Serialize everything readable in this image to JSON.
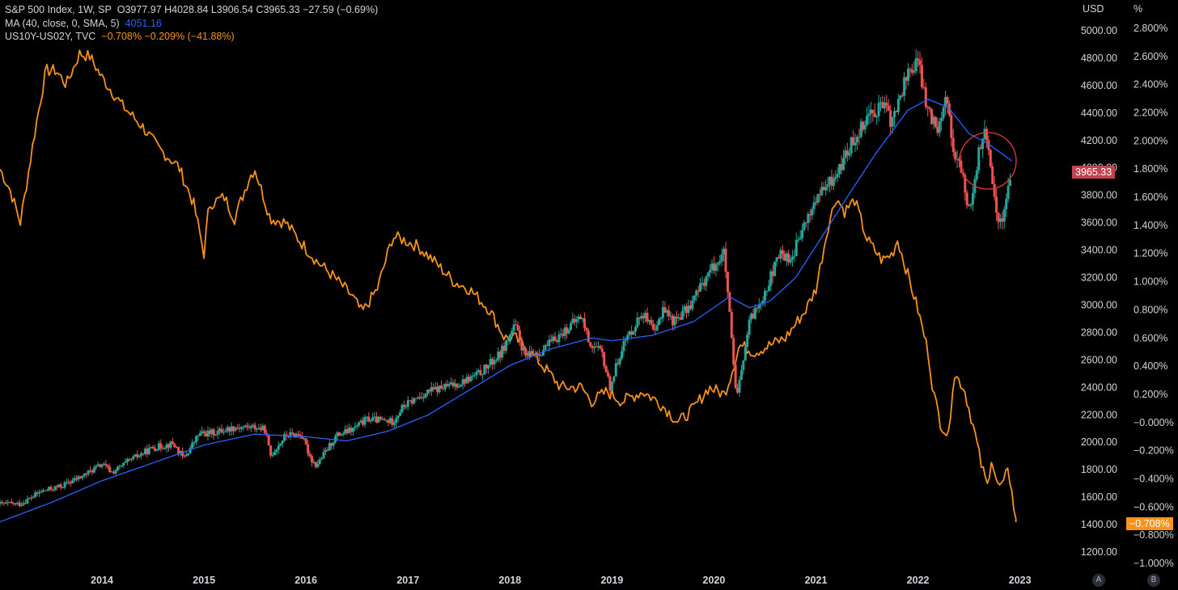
{
  "legend": {
    "row1": {
      "label": "S&P 500 Index, 1W, SP",
      "ohlc": "O3977.97 H4028.84 L3906.54 C3965.33 −27.59 (−0.69%)"
    },
    "row2": {
      "label": "MA (40, close, 0, SMA, 5)",
      "value": "4051.16"
    },
    "row3": {
      "label": "US10Y-US02Y, TVC",
      "value": "−0.708%  −0.209% (−41.88%)"
    }
  },
  "axes": {
    "usd_title": "USD",
    "pct_title": "%",
    "usd_badge": "3965.33",
    "pct_badge": "−0.708%",
    "btn_a": "A",
    "btn_b": "B"
  },
  "colors": {
    "up": "#26a69a",
    "down": "#ef5350",
    "ma": "#2962ff",
    "spread": "#f7931a",
    "price_badge": "#c2434e",
    "pct_badge": "#f7931a",
    "circle": "#e53935"
  },
  "chart_data": {
    "type": "line",
    "title": "S&P 500 Index, 1W, SP",
    "x_ticks": [
      "2014",
      "2015",
      "2016",
      "2017",
      "2018",
      "2019",
      "2020",
      "2021",
      "2022",
      "2023"
    ],
    "usd_ticks": [
      "5000.00",
      "4800.00",
      "4600.00",
      "4400.00",
      "4200.00",
      "4000.00",
      "3800.00",
      "3600.00",
      "3400.00",
      "3200.00",
      "3000.00",
      "2800.00",
      "2600.00",
      "2400.00",
      "2200.00",
      "2000.00",
      "1800.00",
      "1600.00",
      "1400.00",
      "1200.00"
    ],
    "pct_ticks": [
      "2.800%",
      "2.600%",
      "2.400%",
      "2.200%",
      "2.000%",
      "1.800%",
      "1.600%",
      "1.400%",
      "1.200%",
      "1.000%",
      "0.800%",
      "0.600%",
      "0.400%",
      "0.200%",
      "−0.000%",
      "−0.200%",
      "−0.400%",
      "−0.600%",
      "−0.800%",
      "−1.000%"
    ],
    "usd_range": [
      1200,
      5000
    ],
    "pct_range": [
      -1.0,
      2.8
    ],
    "series": [
      {
        "name": "S&P 500 Index",
        "style": "candlestick",
        "points": [
          [
            2013.2,
            1550
          ],
          [
            2013.4,
            1640
          ],
          [
            2013.6,
            1680
          ],
          [
            2013.8,
            1750
          ],
          [
            2014.0,
            1840
          ],
          [
            2014.1,
            1780
          ],
          [
            2014.3,
            1880
          ],
          [
            2014.5,
            1960
          ],
          [
            2014.7,
            1990
          ],
          [
            2014.8,
            1880
          ],
          [
            2014.95,
            2060
          ],
          [
            2015.1,
            2070
          ],
          [
            2015.3,
            2110
          ],
          [
            2015.5,
            2110
          ],
          [
            2015.6,
            2090
          ],
          [
            2015.65,
            1900
          ],
          [
            2015.8,
            2050
          ],
          [
            2015.95,
            2060
          ],
          [
            2016.05,
            1880
          ],
          [
            2016.1,
            1830
          ],
          [
            2016.3,
            2050
          ],
          [
            2016.45,
            2090
          ],
          [
            2016.6,
            2170
          ],
          [
            2016.85,
            2150
          ],
          [
            2016.95,
            2260
          ],
          [
            2017.2,
            2370
          ],
          [
            2017.5,
            2430
          ],
          [
            2017.7,
            2500
          ],
          [
            2017.9,
            2640
          ],
          [
            2018.05,
            2850
          ],
          [
            2018.15,
            2620
          ],
          [
            2018.3,
            2660
          ],
          [
            2018.5,
            2790
          ],
          [
            2018.7,
            2920
          ],
          [
            2018.78,
            2720
          ],
          [
            2018.9,
            2650
          ],
          [
            2018.98,
            2400
          ],
          [
            2019.1,
            2700
          ],
          [
            2019.3,
            2950
          ],
          [
            2019.42,
            2780
          ],
          [
            2019.5,
            2990
          ],
          [
            2019.6,
            2880
          ],
          [
            2019.75,
            2980
          ],
          [
            2019.95,
            3240
          ],
          [
            2020.1,
            3380
          ],
          [
            2020.15,
            2950
          ],
          [
            2020.22,
            2300
          ],
          [
            2020.35,
            2880
          ],
          [
            2020.5,
            3100
          ],
          [
            2020.65,
            3380
          ],
          [
            2020.75,
            3330
          ],
          [
            2020.9,
            3600
          ],
          [
            2021.0,
            3770
          ],
          [
            2021.2,
            3950
          ],
          [
            2021.35,
            4180
          ],
          [
            2021.5,
            4380
          ],
          [
            2021.65,
            4460
          ],
          [
            2021.75,
            4330
          ],
          [
            2021.9,
            4700
          ],
          [
            2022.0,
            4770
          ],
          [
            2022.1,
            4400
          ],
          [
            2022.2,
            4300
          ],
          [
            2022.27,
            4550
          ],
          [
            2022.35,
            4130
          ],
          [
            2022.45,
            3900
          ],
          [
            2022.5,
            3680
          ],
          [
            2022.6,
            4120
          ],
          [
            2022.65,
            4280
          ],
          [
            2022.72,
            3950
          ],
          [
            2022.78,
            3650
          ],
          [
            2022.82,
            3590
          ],
          [
            2022.88,
            3850
          ],
          [
            2022.92,
            3965
          ]
        ]
      },
      {
        "name": "MA (40, close, 0, SMA, 5)",
        "style": "line",
        "points": [
          [
            2013.0,
            1420
          ],
          [
            2013.5,
            1560
          ],
          [
            2014.0,
            1720
          ],
          [
            2014.5,
            1850
          ],
          [
            2015.0,
            1980
          ],
          [
            2015.5,
            2060
          ],
          [
            2016.0,
            2040
          ],
          [
            2016.4,
            2010
          ],
          [
            2016.8,
            2080
          ],
          [
            2017.2,
            2200
          ],
          [
            2017.6,
            2380
          ],
          [
            2018.0,
            2560
          ],
          [
            2018.4,
            2680
          ],
          [
            2018.8,
            2760
          ],
          [
            2019.0,
            2740
          ],
          [
            2019.4,
            2780
          ],
          [
            2019.8,
            2880
          ],
          [
            2020.15,
            3060
          ],
          [
            2020.35,
            2980
          ],
          [
            2020.55,
            3030
          ],
          [
            2020.8,
            3200
          ],
          [
            2021.0,
            3430
          ],
          [
            2021.3,
            3780
          ],
          [
            2021.6,
            4120
          ],
          [
            2021.9,
            4420
          ],
          [
            2022.1,
            4500
          ],
          [
            2022.3,
            4440
          ],
          [
            2022.5,
            4250
          ],
          [
            2022.7,
            4170
          ],
          [
            2022.92,
            4051
          ]
        ]
      },
      {
        "name": "US10Y-US02Y, TVC",
        "style": "line",
        "axis": "pct",
        "points": [
          [
            2013.0,
            1.8
          ],
          [
            2013.1,
            1.65
          ],
          [
            2013.2,
            1.42
          ],
          [
            2013.35,
            2.1
          ],
          [
            2013.45,
            2.5
          ],
          [
            2013.55,
            2.5
          ],
          [
            2013.65,
            2.4
          ],
          [
            2013.78,
            2.62
          ],
          [
            2013.88,
            2.6
          ],
          [
            2014.0,
            2.45
          ],
          [
            2014.2,
            2.25
          ],
          [
            2014.4,
            2.1
          ],
          [
            2014.55,
            1.95
          ],
          [
            2014.75,
            1.82
          ],
          [
            2014.9,
            1.55
          ],
          [
            2015.0,
            1.2
          ],
          [
            2015.05,
            1.55
          ],
          [
            2015.2,
            1.6
          ],
          [
            2015.3,
            1.45
          ],
          [
            2015.45,
            1.75
          ],
          [
            2015.5,
            1.8
          ],
          [
            2015.65,
            1.45
          ],
          [
            2015.8,
            1.42
          ],
          [
            2015.95,
            1.28
          ],
          [
            2016.1,
            1.15
          ],
          [
            2016.25,
            1.05
          ],
          [
            2016.45,
            0.9
          ],
          [
            2016.55,
            0.78
          ],
          [
            2016.7,
            0.95
          ],
          [
            2016.85,
            1.32
          ],
          [
            2016.95,
            1.3
          ],
          [
            2017.1,
            1.25
          ],
          [
            2017.25,
            1.15
          ],
          [
            2017.45,
            1.0
          ],
          [
            2017.6,
            0.95
          ],
          [
            2017.8,
            0.8
          ],
          [
            2017.95,
            0.6
          ],
          [
            2018.05,
            0.6
          ],
          [
            2018.2,
            0.5
          ],
          [
            2018.35,
            0.38
          ],
          [
            2018.5,
            0.25
          ],
          [
            2018.7,
            0.25
          ],
          [
            2018.8,
            0.15
          ],
          [
            2018.95,
            0.22
          ],
          [
            2019.1,
            0.15
          ],
          [
            2019.3,
            0.22
          ],
          [
            2019.45,
            0.15
          ],
          [
            2019.55,
            0.08
          ],
          [
            2019.65,
            0.0
          ],
          [
            2019.8,
            0.1
          ],
          [
            2019.95,
            0.25
          ],
          [
            2020.1,
            0.2
          ],
          [
            2020.15,
            0.3
          ],
          [
            2020.25,
            0.55
          ],
          [
            2020.4,
            0.5
          ],
          [
            2020.55,
            0.55
          ],
          [
            2020.7,
            0.6
          ],
          [
            2020.9,
            0.8
          ],
          [
            2021.0,
            0.95
          ],
          [
            2021.12,
            1.4
          ],
          [
            2021.2,
            1.6
          ],
          [
            2021.28,
            1.5
          ],
          [
            2021.38,
            1.58
          ],
          [
            2021.5,
            1.3
          ],
          [
            2021.65,
            1.15
          ],
          [
            2021.75,
            1.2
          ],
          [
            2021.8,
            1.3
          ],
          [
            2021.9,
            1.05
          ],
          [
            2022.0,
            0.8
          ],
          [
            2022.1,
            0.5
          ],
          [
            2022.15,
            0.22
          ],
          [
            2022.22,
            0.0
          ],
          [
            2022.3,
            -0.1
          ],
          [
            2022.35,
            0.35
          ],
          [
            2022.45,
            0.25
          ],
          [
            2022.55,
            -0.05
          ],
          [
            2022.62,
            -0.3
          ],
          [
            2022.68,
            -0.45
          ],
          [
            2022.72,
            -0.25
          ],
          [
            2022.78,
            -0.45
          ],
          [
            2022.84,
            -0.45
          ],
          [
            2022.88,
            -0.3
          ],
          [
            2022.92,
            -0.5
          ],
          [
            2022.96,
            -0.708
          ]
        ]
      }
    ]
  }
}
